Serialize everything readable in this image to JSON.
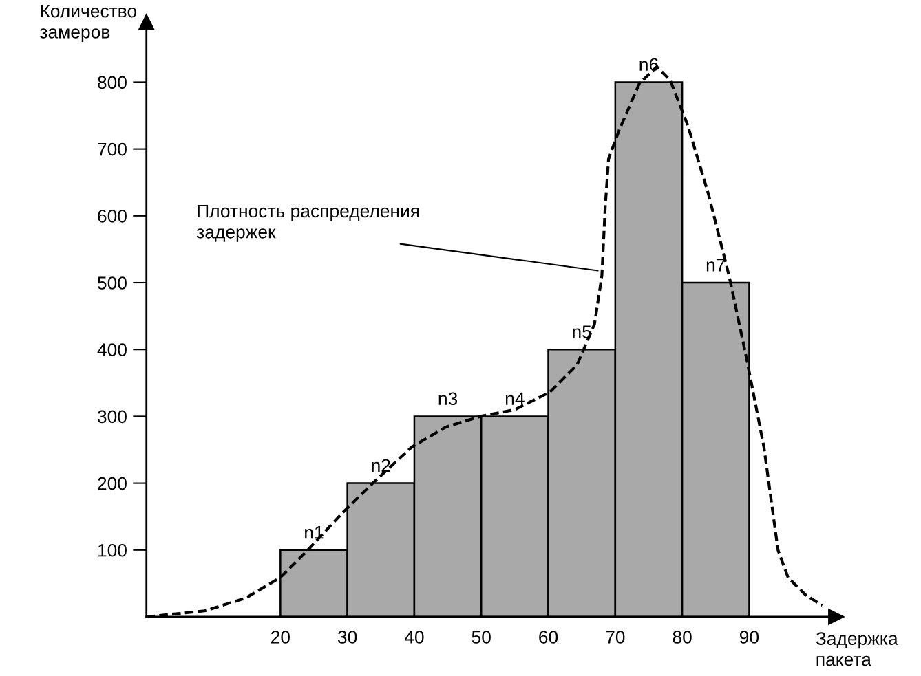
{
  "chart_data": {
    "type": "histogram",
    "bins": [
      20,
      30,
      40,
      50,
      60,
      70,
      80,
      90
    ],
    "values": [
      100,
      200,
      300,
      300,
      400,
      800,
      500
    ],
    "color": "#a9a9a9",
    "series": [
      {
        "type": "line",
        "color": "#000000",
        "line_style": "dashed",
        "x": [
          0,
          8.7,
          14.8,
          20,
          24.1,
          29.3,
          34,
          39.6,
          44.7,
          49.9,
          55,
          60.2,
          64.3,
          66.9,
          68,
          68.5,
          69,
          70.5,
          73.6,
          76.2,
          78.2,
          80.8,
          83.9,
          87,
          89.6,
          92.2,
          94.3,
          95.8,
          98.4,
          100.9
        ],
        "values": [
          0,
          9,
          28,
          59,
          100,
          156,
          202,
          254,
          284,
          300,
          310,
          336,
          377,
          438,
          510,
          613,
          685,
          726,
          798,
          823,
          803,
          736,
          633,
          510,
          387,
          254,
          100,
          59,
          33,
          17
        ]
      }
    ],
    "xlabel": "Задержка\nпакета",
    "ylabel": "Количество\nзамеров",
    "xlim": [
      0,
      103
    ],
    "ylim": [
      0,
      890
    ],
    "xticks": [
      20,
      30,
      40,
      50,
      60,
      70,
      80,
      90
    ],
    "yticks": [
      100,
      200,
      300,
      400,
      500,
      600,
      700,
      800
    ],
    "grid": false,
    "annotations": [
      {
        "text": "n1",
        "x": 25,
        "y": 100
      },
      {
        "text": "n2",
        "x": 35,
        "y": 200
      },
      {
        "text": "n3",
        "x": 45,
        "y": 300
      },
      {
        "text": "n4",
        "x": 55,
        "y": 300
      },
      {
        "text": "n5",
        "x": 65,
        "y": 400
      },
      {
        "text": "n6",
        "x": 75,
        "y": 800
      },
      {
        "text": "n7",
        "x": 85,
        "y": 500
      },
      {
        "text": "Плотность распределения\nзадержек",
        "x": 67.4,
        "y": 518
      }
    ]
  }
}
